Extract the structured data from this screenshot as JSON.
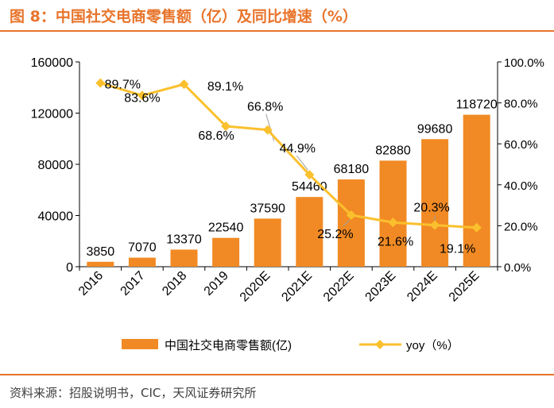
{
  "figure": {
    "title": "图 8：中国社交电商零售额（亿）及同比增速（%）",
    "source": "资料来源：招股说明书，CIC，天风证券研究所"
  },
  "colors": {
    "accent": "#e8742b",
    "bar": "#f18a24",
    "line": "#fbc02d",
    "text": "#000000"
  },
  "chart_data": {
    "type": "bar",
    "categories": [
      "2016",
      "2017",
      "2018",
      "2019",
      "2020E",
      "2021E",
      "2022E",
      "2023E",
      "2024E",
      "2025E"
    ],
    "series": [
      {
        "name": "中国社交电商零售额(亿)",
        "type": "bar",
        "axis": "left",
        "values": [
          3850,
          7070,
          13370,
          22540,
          37590,
          54460,
          68180,
          82880,
          99680,
          118720
        ]
      },
      {
        "name": "yoy（%）",
        "type": "line",
        "axis": "right",
        "values": [
          89.7,
          83.6,
          89.1,
          68.6,
          66.8,
          44.9,
          25.2,
          21.6,
          20.3,
          19.1
        ],
        "labels": [
          "89.7%",
          "83.6%",
          "89.1%",
          "68.6%",
          "66.8%",
          "44.9%",
          "25.2%",
          "21.6%",
          "20.3%",
          "19.1%"
        ]
      }
    ],
    "y_left": {
      "min": 0,
      "max": 160000,
      "ticks": [
        "0",
        "40000",
        "80000",
        "120000",
        "160000"
      ],
      "tick_values": [
        0,
        40000,
        80000,
        120000,
        160000
      ]
    },
    "y_right": {
      "min": 0,
      "max": 100,
      "ticks": [
        "0.0%",
        "20.0%",
        "40.0%",
        "60.0%",
        "80.0%",
        "100.0%"
      ],
      "tick_values": [
        0,
        20,
        40,
        60,
        80,
        100
      ]
    },
    "legend": [
      {
        "label": "中国社交电商零售额(亿)",
        "kind": "bar"
      },
      {
        "label": "yoy（%）",
        "kind": "line"
      }
    ],
    "legend_position": "bottom",
    "grid": false
  }
}
